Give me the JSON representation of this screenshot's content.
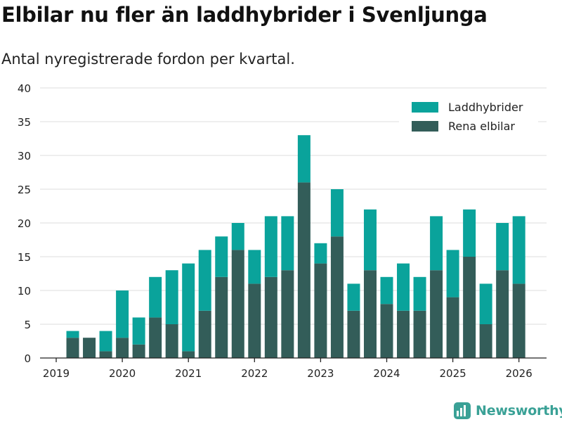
{
  "title": "Elbilar nu fler än laddhybrider i Svenljunga",
  "subtitle": "Antal nyregistrerade fordon per kvartal.",
  "brand": "Newsworthy",
  "colors": {
    "laddhybrider": "#0aa39b",
    "elbilar": "#335d59",
    "grid": "#dddddd",
    "axis": "#222222"
  },
  "chart_data": {
    "type": "bar",
    "stacked": true,
    "categories": [
      "2019 Q2",
      "2019 Q3",
      "2019 Q4",
      "2020 Q1",
      "2020 Q2",
      "2020 Q3",
      "2020 Q4",
      "2021 Q1",
      "2021 Q2",
      "2021 Q3",
      "2021 Q4",
      "2022 Q1",
      "2022 Q2",
      "2022 Q3",
      "2022 Q4",
      "2023 Q1",
      "2023 Q2",
      "2023 Q3",
      "2023 Q4",
      "2024 Q1",
      "2024 Q2",
      "2024 Q3",
      "2024 Q4",
      "2025 Q1",
      "2025 Q2",
      "2025 Q3",
      "2025 Q4",
      "2026 Q1"
    ],
    "series": [
      {
        "name": "Rena elbilar",
        "values": [
          3,
          3,
          1,
          3,
          2,
          6,
          5,
          1,
          7,
          12,
          16,
          11,
          12,
          13,
          26,
          14,
          18,
          7,
          13,
          8,
          7,
          7,
          13,
          9,
          15,
          5,
          13,
          11
        ]
      },
      {
        "name": "Laddhybrider",
        "values": [
          1,
          0,
          3,
          7,
          4,
          6,
          8,
          13,
          9,
          6,
          4,
          5,
          9,
          8,
          7,
          3,
          7,
          4,
          9,
          4,
          7,
          5,
          8,
          7,
          7,
          6,
          7,
          10
        ]
      }
    ],
    "xticks": [
      "2019",
      "2020",
      "2021",
      "2022",
      "2023",
      "2024",
      "2025",
      "2026"
    ],
    "yticks": [
      0,
      5,
      10,
      15,
      20,
      25,
      30,
      35,
      40
    ],
    "ylim": [
      0,
      40
    ],
    "legend": [
      "Laddhybrider",
      "Rena elbilar"
    ],
    "legend_position": "top-right",
    "grid": true
  }
}
